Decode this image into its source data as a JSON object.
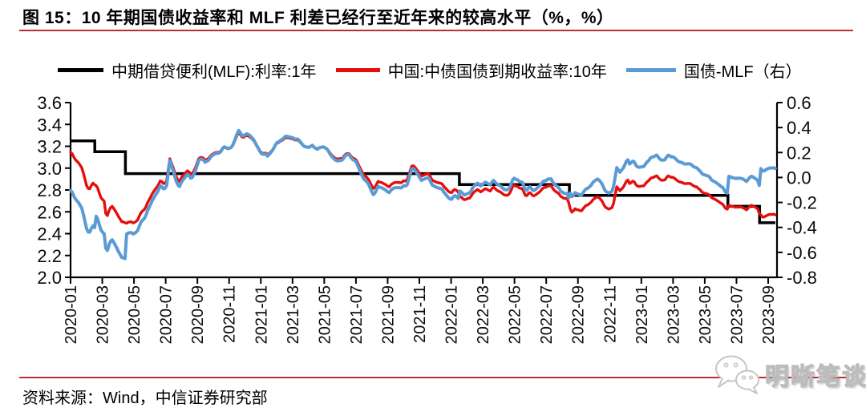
{
  "figure": {
    "title": "图 15：10 年期国债收益率和 MLF 利差已经行至近年来的较高水平（%，%）",
    "source_note": "资料来源：Wind，中信证券研究部",
    "watermark": "明晰笔谈",
    "accent_color": "#c02b2b"
  },
  "chart_data": {
    "type": "line",
    "title": "10 年期国债收益率和 MLF 利差已经行至近年来的较高水平（%，%）",
    "legend_position": "top",
    "grid": false,
    "x_axis": {
      "start": "2020-01",
      "end": "2023-09",
      "tick_labels": [
        "2020-01",
        "2020-03",
        "2020-05",
        "2020-07",
        "2020-09",
        "2020-11",
        "2021-01",
        "2021-03",
        "2021-05",
        "2021-07",
        "2021-09",
        "2021-11",
        "2022-01",
        "2022-03",
        "2022-05",
        "2022-07",
        "2022-09",
        "2022-11",
        "2023-01",
        "2023-03",
        "2023-05",
        "2023-07",
        "2023-09"
      ]
    },
    "left_axis": {
      "min": 2.0,
      "max": 3.6,
      "step": 0.2,
      "ticks": [
        "3.6",
        "3.4",
        "3.2",
        "3.0",
        "2.8",
        "2.6",
        "2.4",
        "2.2",
        "2.0"
      ]
    },
    "right_axis": {
      "min": -0.8,
      "max": 0.6,
      "step": 0.2,
      "ticks": [
        "0.6",
        "0.4",
        "0.2",
        "0.0",
        "-0.2",
        "-0.4",
        "-0.6",
        "-0.8"
      ]
    },
    "series": [
      {
        "name": "中期借贷便利(MLF):利率:1年",
        "color": "#000000",
        "axis": "left",
        "type": "step",
        "points": [
          [
            "2020-01-01",
            3.25
          ],
          [
            "2020-02-17",
            3.15
          ],
          [
            "2020-04-15",
            2.95
          ],
          [
            "2022-01-17",
            2.85
          ],
          [
            "2022-08-15",
            2.75
          ],
          [
            "2023-06-15",
            2.65
          ],
          [
            "2023-08-15",
            2.5
          ]
        ]
      },
      {
        "name": "中国:中债国债到期收益率:10年",
        "color": "#e60d0d",
        "axis": "left",
        "type": "line",
        "points": [
          [
            "2020-01-02",
            3.14
          ],
          [
            "2020-01-10",
            3.09
          ],
          [
            "2020-01-17",
            3.04
          ],
          [
            "2020-01-23",
            2.99
          ],
          [
            "2020-02-03",
            2.82
          ],
          [
            "2020-02-07",
            2.8
          ],
          [
            "2020-02-14",
            2.86
          ],
          [
            "2020-02-21",
            2.85
          ],
          [
            "2020-02-28",
            2.74
          ],
          [
            "2020-03-05",
            2.7
          ],
          [
            "2020-03-09",
            2.52
          ],
          [
            "2020-03-13",
            2.6
          ],
          [
            "2020-03-19",
            2.66
          ],
          [
            "2020-03-27",
            2.6
          ],
          [
            "2020-04-02",
            2.55
          ],
          [
            "2020-04-08",
            2.52
          ],
          [
            "2020-04-17",
            2.5
          ],
          [
            "2020-04-24",
            2.51
          ],
          [
            "2020-04-30",
            2.49
          ],
          [
            "2020-05-08",
            2.53
          ],
          [
            "2020-05-15",
            2.6
          ],
          [
            "2020-05-22",
            2.63
          ],
          [
            "2020-05-29",
            2.7
          ],
          [
            "2020-06-05",
            2.76
          ],
          [
            "2020-06-15",
            2.84
          ],
          [
            "2020-06-22",
            2.9
          ],
          [
            "2020-06-29",
            2.86
          ],
          [
            "2020-07-03",
            2.9
          ],
          [
            "2020-07-09",
            3.09
          ],
          [
            "2020-07-14",
            3.02
          ],
          [
            "2020-07-20",
            2.93
          ],
          [
            "2020-07-27",
            2.88
          ],
          [
            "2020-08-04",
            2.94
          ],
          [
            "2020-08-12",
            2.97
          ],
          [
            "2020-08-20",
            2.94
          ],
          [
            "2020-08-28",
            3.02
          ],
          [
            "2020-09-04",
            3.08
          ],
          [
            "2020-09-11",
            3.1
          ],
          [
            "2020-09-18",
            3.08
          ],
          [
            "2020-09-27",
            3.12
          ],
          [
            "2020-10-12",
            3.15
          ],
          [
            "2020-10-21",
            3.2
          ],
          [
            "2020-10-30",
            3.18
          ],
          [
            "2020-11-06",
            3.2
          ],
          [
            "2020-11-13",
            3.26
          ],
          [
            "2020-11-19",
            3.33
          ],
          [
            "2020-11-27",
            3.28
          ],
          [
            "2020-12-04",
            3.3
          ],
          [
            "2020-12-11",
            3.28
          ],
          [
            "2020-12-18",
            3.25
          ],
          [
            "2020-12-25",
            3.2
          ],
          [
            "2020-12-31",
            3.15
          ],
          [
            "2021-01-08",
            3.14
          ],
          [
            "2021-01-15",
            3.12
          ],
          [
            "2021-01-22",
            3.17
          ],
          [
            "2021-01-29",
            3.22
          ],
          [
            "2021-02-05",
            3.24
          ],
          [
            "2021-02-18",
            3.29
          ],
          [
            "2021-02-26",
            3.27
          ],
          [
            "2021-03-05",
            3.25
          ],
          [
            "2021-03-12",
            3.26
          ],
          [
            "2021-03-19",
            3.23
          ],
          [
            "2021-03-26",
            3.2
          ],
          [
            "2021-04-02",
            3.19
          ],
          [
            "2021-04-09",
            3.21
          ],
          [
            "2021-04-16",
            3.17
          ],
          [
            "2021-04-30",
            3.19
          ],
          [
            "2021-05-07",
            3.17
          ],
          [
            "2021-05-14",
            3.13
          ],
          [
            "2021-05-21",
            3.1
          ],
          [
            "2021-05-28",
            3.08
          ],
          [
            "2021-06-04",
            3.08
          ],
          [
            "2021-06-11",
            3.12
          ],
          [
            "2021-06-18",
            3.13
          ],
          [
            "2021-06-25",
            3.09
          ],
          [
            "2021-07-02",
            3.06
          ],
          [
            "2021-07-09",
            3.0
          ],
          [
            "2021-07-16",
            2.94
          ],
          [
            "2021-07-23",
            2.92
          ],
          [
            "2021-07-30",
            2.85
          ],
          [
            "2021-08-05",
            2.8
          ],
          [
            "2021-08-13",
            2.87
          ],
          [
            "2021-08-20",
            2.86
          ],
          [
            "2021-08-27",
            2.84
          ],
          [
            "2021-09-03",
            2.83
          ],
          [
            "2021-09-10",
            2.87
          ],
          [
            "2021-09-17",
            2.88
          ],
          [
            "2021-09-26",
            2.86
          ],
          [
            "2021-10-08",
            2.9
          ],
          [
            "2021-10-18",
            3.03
          ],
          [
            "2021-10-25",
            2.99
          ],
          [
            "2021-11-05",
            2.92
          ],
          [
            "2021-11-12",
            2.94
          ],
          [
            "2021-11-19",
            2.95
          ],
          [
            "2021-11-26",
            2.88
          ],
          [
            "2021-12-03",
            2.86
          ],
          [
            "2021-12-10",
            2.85
          ],
          [
            "2021-12-17",
            2.83
          ],
          [
            "2021-12-31",
            2.78
          ],
          [
            "2022-01-07",
            2.81
          ],
          [
            "2022-01-14",
            2.79
          ],
          [
            "2022-01-18",
            2.73
          ],
          [
            "2022-01-28",
            2.7
          ],
          [
            "2022-02-07",
            2.73
          ],
          [
            "2022-02-14",
            2.79
          ],
          [
            "2022-02-21",
            2.8
          ],
          [
            "2022-02-28",
            2.78
          ],
          [
            "2022-03-07",
            2.82
          ],
          [
            "2022-03-14",
            2.79
          ],
          [
            "2022-03-21",
            2.82
          ],
          [
            "2022-03-28",
            2.79
          ],
          [
            "2022-04-06",
            2.77
          ],
          [
            "2022-04-13",
            2.75
          ],
          [
            "2022-04-20",
            2.76
          ],
          [
            "2022-04-29",
            2.84
          ],
          [
            "2022-05-09",
            2.82
          ],
          [
            "2022-05-16",
            2.81
          ],
          [
            "2022-05-23",
            2.74
          ],
          [
            "2022-05-30",
            2.77
          ],
          [
            "2022-06-06",
            2.75
          ],
          [
            "2022-06-13",
            2.77
          ],
          [
            "2022-06-20",
            2.78
          ],
          [
            "2022-06-27",
            2.83
          ],
          [
            "2022-07-04",
            2.84
          ],
          [
            "2022-07-11",
            2.83
          ],
          [
            "2022-07-18",
            2.79
          ],
          [
            "2022-07-25",
            2.77
          ],
          [
            "2022-07-29",
            2.74
          ],
          [
            "2022-08-05",
            2.73
          ],
          [
            "2022-08-12",
            2.73
          ],
          [
            "2022-08-16",
            2.64
          ],
          [
            "2022-08-19",
            2.59
          ],
          [
            "2022-08-26",
            2.62
          ],
          [
            "2022-09-07",
            2.61
          ],
          [
            "2022-09-16",
            2.67
          ],
          [
            "2022-09-23",
            2.68
          ],
          [
            "2022-09-30",
            2.72
          ],
          [
            "2022-10-10",
            2.73
          ],
          [
            "2022-10-17",
            2.7
          ],
          [
            "2022-10-24",
            2.64
          ],
          [
            "2022-10-31",
            2.62
          ],
          [
            "2022-11-07",
            2.64
          ],
          [
            "2022-11-11",
            2.73
          ],
          [
            "2022-11-14",
            2.83
          ],
          [
            "2022-11-21",
            2.79
          ],
          [
            "2022-11-28",
            2.83
          ],
          [
            "2022-12-05",
            2.9
          ],
          [
            "2022-12-09",
            2.86
          ],
          [
            "2022-12-16",
            2.88
          ],
          [
            "2022-12-23",
            2.84
          ],
          [
            "2022-12-30",
            2.84
          ],
          [
            "2023-01-06",
            2.83
          ],
          [
            "2023-01-13",
            2.89
          ],
          [
            "2023-01-20",
            2.92
          ],
          [
            "2023-01-31",
            2.93
          ],
          [
            "2023-02-07",
            2.9
          ],
          [
            "2023-02-14",
            2.89
          ],
          [
            "2023-02-21",
            2.92
          ],
          [
            "2023-02-28",
            2.91
          ],
          [
            "2023-03-07",
            2.89
          ],
          [
            "2023-03-14",
            2.87
          ],
          [
            "2023-03-21",
            2.86
          ],
          [
            "2023-03-28",
            2.85
          ],
          [
            "2023-04-06",
            2.84
          ],
          [
            "2023-04-14",
            2.83
          ],
          [
            "2023-04-21",
            2.82
          ],
          [
            "2023-04-28",
            2.78
          ],
          [
            "2023-05-08",
            2.75
          ],
          [
            "2023-05-15",
            2.72
          ],
          [
            "2023-05-22",
            2.71
          ],
          [
            "2023-05-29",
            2.7
          ],
          [
            "2023-06-05",
            2.67
          ],
          [
            "2023-06-13",
            2.62
          ],
          [
            "2023-06-16",
            2.67
          ],
          [
            "2023-06-26",
            2.66
          ],
          [
            "2023-06-30",
            2.64
          ],
          [
            "2023-07-07",
            2.64
          ],
          [
            "2023-07-14",
            2.63
          ],
          [
            "2023-07-21",
            2.62
          ],
          [
            "2023-07-28",
            2.66
          ],
          [
            "2023-08-04",
            2.65
          ],
          [
            "2023-08-11",
            2.64
          ],
          [
            "2023-08-15",
            2.58
          ],
          [
            "2023-08-21",
            2.54
          ],
          [
            "2023-08-28",
            2.57
          ],
          [
            "2023-09-04",
            2.59
          ],
          [
            "2023-09-11",
            2.58
          ],
          [
            "2023-09-14",
            2.57
          ]
        ]
      },
      {
        "name": "国债-MLF（右）",
        "color": "#5b9bd5",
        "axis": "right",
        "type": "line",
        "derived": "series[1] minus series[0] (10Y yield minus MLF rate)"
      }
    ]
  }
}
